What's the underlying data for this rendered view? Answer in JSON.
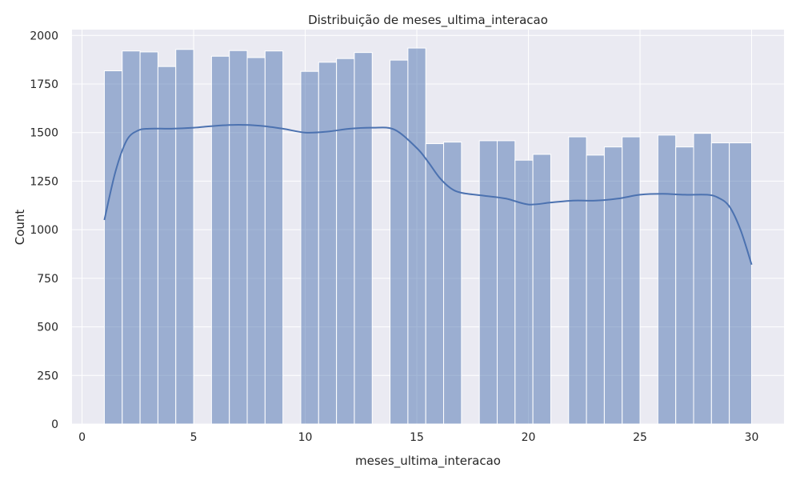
{
  "chart_data": {
    "type": "bar",
    "title": "Distribuição de meses_ultima_interacao",
    "xlabel": "meses_ultima_interacao",
    "ylabel": "Count",
    "xlim": [
      -0.45,
      31.45
    ],
    "ylim": [
      0,
      2030
    ],
    "xticks": [
      0,
      5,
      10,
      15,
      20,
      25,
      30
    ],
    "yticks": [
      0,
      250,
      500,
      750,
      1000,
      1250,
      1500,
      1750,
      2000
    ],
    "grid": true,
    "background": "#eaeaf2",
    "bar_color": "#4c72b0",
    "bar_opacity": 0.5,
    "kde_color": "#4c72b0",
    "bins": [
      {
        "x0": 1.0,
        "x1": 1.8,
        "count": 1818
      },
      {
        "x0": 1.8,
        "x1": 2.6,
        "count": 1920
      },
      {
        "x0": 2.6,
        "x1": 3.4,
        "count": 1915
      },
      {
        "x0": 3.4,
        "x1": 4.2,
        "count": 1840
      },
      {
        "x0": 4.2,
        "x1": 5.0,
        "count": 1928
      },
      {
        "x0": 5.0,
        "x1": 5.8,
        "count": 0
      },
      {
        "x0": 5.8,
        "x1": 6.6,
        "count": 1893
      },
      {
        "x0": 6.6,
        "x1": 7.4,
        "count": 1922
      },
      {
        "x0": 7.4,
        "x1": 8.2,
        "count": 1886
      },
      {
        "x0": 8.2,
        "x1": 9.0,
        "count": 1920
      },
      {
        "x0": 9.0,
        "x1": 9.8,
        "count": 0
      },
      {
        "x0": 9.8,
        "x1": 10.6,
        "count": 1815
      },
      {
        "x0": 10.6,
        "x1": 11.4,
        "count": 1862
      },
      {
        "x0": 11.4,
        "x1": 12.2,
        "count": 1881
      },
      {
        "x0": 12.2,
        "x1": 13.0,
        "count": 1912
      },
      {
        "x0": 13.0,
        "x1": 13.8,
        "count": 0
      },
      {
        "x0": 13.8,
        "x1": 14.6,
        "count": 1873
      },
      {
        "x0": 14.6,
        "x1": 15.4,
        "count": 1935
      },
      {
        "x0": 15.4,
        "x1": 16.2,
        "count": 1443
      },
      {
        "x0": 16.2,
        "x1": 17.0,
        "count": 1451
      },
      {
        "x0": 17.0,
        "x1": 17.8,
        "count": 0
      },
      {
        "x0": 17.8,
        "x1": 18.6,
        "count": 1458
      },
      {
        "x0": 18.6,
        "x1": 19.4,
        "count": 1458
      },
      {
        "x0": 19.4,
        "x1": 20.2,
        "count": 1358
      },
      {
        "x0": 20.2,
        "x1": 21.0,
        "count": 1388
      },
      {
        "x0": 21.0,
        "x1": 21.8,
        "count": 0
      },
      {
        "x0": 21.8,
        "x1": 22.6,
        "count": 1478
      },
      {
        "x0": 22.6,
        "x1": 23.4,
        "count": 1384
      },
      {
        "x0": 23.4,
        "x1": 24.2,
        "count": 1426
      },
      {
        "x0": 24.2,
        "x1": 25.0,
        "count": 1478
      },
      {
        "x0": 25.0,
        "x1": 25.8,
        "count": 0
      },
      {
        "x0": 25.8,
        "x1": 26.6,
        "count": 1487
      },
      {
        "x0": 26.6,
        "x1": 27.4,
        "count": 1426
      },
      {
        "x0": 27.4,
        "x1": 28.2,
        "count": 1496
      },
      {
        "x0": 28.2,
        "x1": 29.0,
        "count": 1447
      },
      {
        "x0": 29.0,
        "x1": 30.0,
        "count": 1447
      }
    ],
    "kde": {
      "x": [
        1.0,
        1.5,
        2.0,
        2.5,
        3.0,
        4.0,
        5.0,
        6.0,
        7.0,
        8.0,
        9.0,
        10.0,
        11.0,
        12.0,
        13.0,
        14.0,
        15.0,
        15.5,
        16.0,
        16.5,
        17.0,
        18.0,
        19.0,
        20.0,
        21.0,
        22.0,
        23.0,
        24.0,
        25.0,
        26.0,
        27.0,
        28.0,
        28.5,
        29.0,
        29.5,
        30.0
      ],
      "y": [
        1050,
        1300,
        1460,
        1510,
        1520,
        1520,
        1525,
        1535,
        1540,
        1535,
        1520,
        1500,
        1505,
        1520,
        1525,
        1515,
        1420,
        1350,
        1270,
        1215,
        1190,
        1175,
        1160,
        1130,
        1140,
        1150,
        1150,
        1160,
        1180,
        1185,
        1180,
        1180,
        1165,
        1120,
        1000,
        820
      ]
    }
  }
}
